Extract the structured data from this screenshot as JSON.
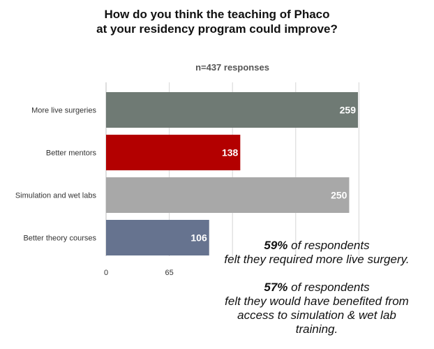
{
  "chart_data": {
    "type": "bar",
    "orientation": "horizontal",
    "title_lines": [
      "How do you think the teaching of Phaco",
      "at your residency program could improve?"
    ],
    "subtitle": "n=437 responses",
    "categories": [
      "More live surgeries",
      "Better mentors",
      "Simulation and wet labs",
      "Better theory courses"
    ],
    "values": [
      259,
      138,
      250,
      106
    ],
    "value_labels": [
      "259",
      "138",
      "250",
      "106"
    ],
    "colors": [
      "#6f7a74",
      "#b30000",
      "#a8a8a8",
      "#66738f"
    ],
    "xticks": [
      {
        "value": 0,
        "label": "0"
      },
      {
        "value": 65,
        "label": "65"
      }
    ],
    "xlim": [
      0,
      260
    ],
    "grid": true
  },
  "notes": [
    {
      "highlight": "59%",
      "rest": " of respondents",
      "lines": [
        "felt they required more live surgery."
      ]
    },
    {
      "highlight": "57%",
      "rest": " of respondents",
      "lines": [
        "felt they would have benefited from",
        "access to simulation & wet lab",
        "training."
      ]
    }
  ]
}
